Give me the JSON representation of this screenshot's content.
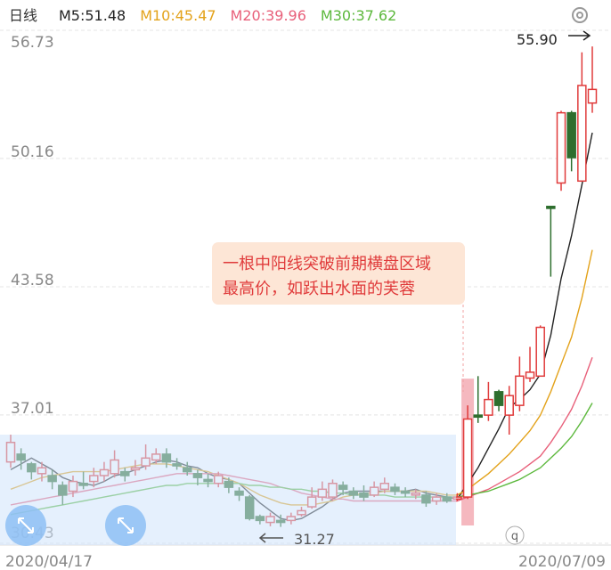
{
  "chart_data": {
    "type": "candlestick",
    "title": "日线",
    "legend": [
      {
        "name": "M5:51.48",
        "color": "#222222"
      },
      {
        "name": "M10:45.47",
        "color": "#e3a21a"
      },
      {
        "name": "M20:39.96",
        "color": "#e8607a"
      },
      {
        "name": "M30:37.62",
        "color": "#5cb83c"
      }
    ],
    "categories": [
      "2020/04/17",
      null,
      null,
      null,
      null,
      null,
      null,
      null,
      null,
      null,
      null,
      null,
      null,
      null,
      null,
      null,
      null,
      null,
      null,
      null,
      null,
      null,
      null,
      null,
      null,
      null,
      null,
      null,
      null,
      null,
      null,
      null,
      null,
      null,
      null,
      null,
      null,
      null,
      null,
      null,
      null,
      null,
      null,
      null,
      null,
      null,
      null,
      null,
      null,
      null,
      null,
      null,
      null,
      null,
      null,
      null,
      "2020/07/09"
    ],
    "open": [
      34.6,
      35.0,
      34.5,
      34.0,
      33.9,
      33.4,
      33.1,
      33.5,
      33.6,
      33.9,
      34.0,
      34.1,
      34.2,
      34.4,
      34.7,
      35.0,
      34.5,
      34.3,
      34.0,
      33.7,
      33.5,
      33.6,
      33.1,
      32.8,
      31.8,
      31.5,
      31.6,
      31.6,
      31.9,
      32.3,
      32.8,
      32.8,
      33.4,
      33.1,
      33.0,
      32.9,
      33.2,
      33.3,
      33.1,
      32.9,
      32.9,
      32.6,
      32.8,
      32.7,
      32.8,
      37.0,
      37.0,
      38.2,
      37.0,
      37.5,
      38.9,
      39.0,
      47.7,
      48.9,
      52.5,
      49.0,
      53.0
    ],
    "close": [
      35.6,
      34.7,
      34.1,
      34.3,
      33.6,
      32.9,
      33.6,
      33.4,
      33.9,
      34.2,
      34.7,
      33.9,
      34.3,
      34.8,
      35.0,
      34.6,
      34.4,
      34.1,
      33.8,
      33.6,
      33.9,
      33.3,
      32.9,
      31.7,
      31.6,
      31.8,
      31.5,
      31.8,
      32.1,
      32.8,
      33.2,
      33.5,
      33.2,
      32.9,
      32.8,
      33.3,
      33.5,
      33.1,
      33.0,
      33.0,
      32.5,
      32.8,
      32.6,
      32.8,
      36.8,
      36.9,
      37.8,
      37.5,
      38.0,
      39.0,
      39.2,
      41.5,
      47.6,
      52.5,
      50.2,
      53.9,
      53.7
    ],
    "high": [
      36.0,
      35.3,
      34.6,
      34.6,
      34.2,
      33.6,
      33.9,
      34.1,
      34.3,
      34.6,
      35.2,
      34.3,
      34.7,
      35.5,
      35.3,
      35.3,
      34.8,
      34.6,
      34.2,
      34.0,
      34.1,
      33.8,
      33.3,
      32.9,
      31.9,
      32.0,
      31.9,
      32.0,
      32.3,
      33.3,
      33.6,
      33.7,
      33.6,
      33.3,
      33.4,
      33.6,
      33.8,
      33.5,
      33.3,
      33.2,
      33.1,
      33.0,
      33.0,
      33.0,
      37.5,
      39.0,
      38.7,
      38.3,
      38.5,
      40.0,
      40.5,
      41.6,
      47.7,
      52.6,
      52.6,
      55.6,
      55.9
    ],
    "low": [
      34.3,
      34.2,
      33.7,
      33.6,
      33.2,
      32.4,
      32.8,
      33.2,
      33.3,
      33.6,
      33.8,
      33.6,
      33.9,
      34.2,
      34.5,
      34.3,
      34.2,
      33.9,
      33.4,
      33.3,
      33.3,
      33.0,
      32.6,
      31.6,
      31.4,
      31.3,
      31.27,
      31.4,
      31.8,
      32.2,
      32.6,
      32.6,
      32.9,
      32.7,
      32.6,
      32.8,
      33.0,
      32.9,
      32.8,
      32.7,
      32.3,
      32.4,
      32.5,
      32.6,
      32.7,
      36.6,
      36.7,
      37.2,
      36.0,
      37.2,
      38.7,
      39.0,
      44.1,
      48.5,
      49.5,
      49.0,
      52.5
    ],
    "up_color": "#e03b3b",
    "down_color": "#2e6e2e",
    "lines": [
      {
        "color": "#222222",
        "values": [
          34.2,
          34.5,
          34.8,
          34.5,
          34.2,
          33.8,
          33.6,
          33.5,
          33.4,
          33.6,
          33.9,
          34.0,
          34.2,
          34.4,
          34.6,
          34.7,
          34.6,
          34.4,
          34.3,
          34.0,
          33.8,
          33.7,
          33.5,
          33.0,
          32.5,
          32.1,
          31.7,
          31.6,
          31.7,
          32.0,
          32.3,
          32.7,
          33.0,
          33.1,
          33.1,
          33.1,
          33.1,
          33.1,
          33.1,
          33.2,
          33.0,
          32.9,
          32.8,
          32.7,
          33.5,
          34.3,
          35.3,
          36.3,
          37.4,
          37.8,
          38.3,
          39.1,
          41.1,
          44.0,
          46.2,
          48.8,
          51.48
        ]
      },
      {
        "color": "#e3a21a",
        "values": [
          33.2,
          33.4,
          33.6,
          33.8,
          33.9,
          34.0,
          34.1,
          34.1,
          34.1,
          34.1,
          34.2,
          34.3,
          34.4,
          34.5,
          34.5,
          34.5,
          34.4,
          34.3,
          34.2,
          34.1,
          33.9,
          33.7,
          33.5,
          33.2,
          32.9,
          32.7,
          32.5,
          32.4,
          32.4,
          32.4,
          32.5,
          32.6,
          32.8,
          32.9,
          33.0,
          33.0,
          33.1,
          33.1,
          33.1,
          33.1,
          33.1,
          33.0,
          32.9,
          32.9,
          33.2,
          33.6,
          34.0,
          34.5,
          35.0,
          35.6,
          36.2,
          37.0,
          38.2,
          39.6,
          41.0,
          43.0,
          45.47
        ]
      },
      {
        "color": "#e8607a",
        "values": [
          32.4,
          32.5,
          32.6,
          32.7,
          32.8,
          32.9,
          33.0,
          33.1,
          33.2,
          33.3,
          33.4,
          33.5,
          33.6,
          33.7,
          33.8,
          33.9,
          34.0,
          34.0,
          34.0,
          34.0,
          34.0,
          33.9,
          33.8,
          33.7,
          33.6,
          33.5,
          33.3,
          33.2,
          33.0,
          32.9,
          32.8,
          32.7,
          32.7,
          32.6,
          32.6,
          32.6,
          32.6,
          32.6,
          32.6,
          32.6,
          32.6,
          32.6,
          32.6,
          32.6,
          32.8,
          33.0,
          33.2,
          33.5,
          33.8,
          34.1,
          34.5,
          34.9,
          35.6,
          36.4,
          37.3,
          38.5,
          39.96
        ]
      },
      {
        "color": "#5cb83c",
        "values": [
          31.9,
          32.0,
          32.1,
          32.2,
          32.3,
          32.4,
          32.5,
          32.6,
          32.7,
          32.8,
          32.9,
          33.0,
          33.1,
          33.2,
          33.3,
          33.4,
          33.4,
          33.5,
          33.5,
          33.5,
          33.5,
          33.5,
          33.5,
          33.4,
          33.4,
          33.3,
          33.3,
          33.2,
          33.2,
          33.1,
          33.1,
          33.0,
          33.0,
          32.9,
          32.9,
          32.9,
          32.9,
          32.8,
          32.8,
          32.8,
          32.8,
          32.8,
          32.8,
          32.8,
          32.9,
          33.0,
          33.1,
          33.3,
          33.5,
          33.7,
          34.0,
          34.3,
          34.8,
          35.3,
          35.9,
          36.7,
          37.62
        ]
      }
    ],
    "ylim": [
      30.43,
      56.73
    ],
    "yticks": [
      56.73,
      50.16,
      43.58,
      37.01,
      30.43
    ],
    "grid": true,
    "max_label": "55.90",
    "min_label": "31.27",
    "note": [
      "一根中阳线突破前期横盘区域",
      "最高价，如跃出水面的芙蓉"
    ],
    "badge": "q"
  }
}
